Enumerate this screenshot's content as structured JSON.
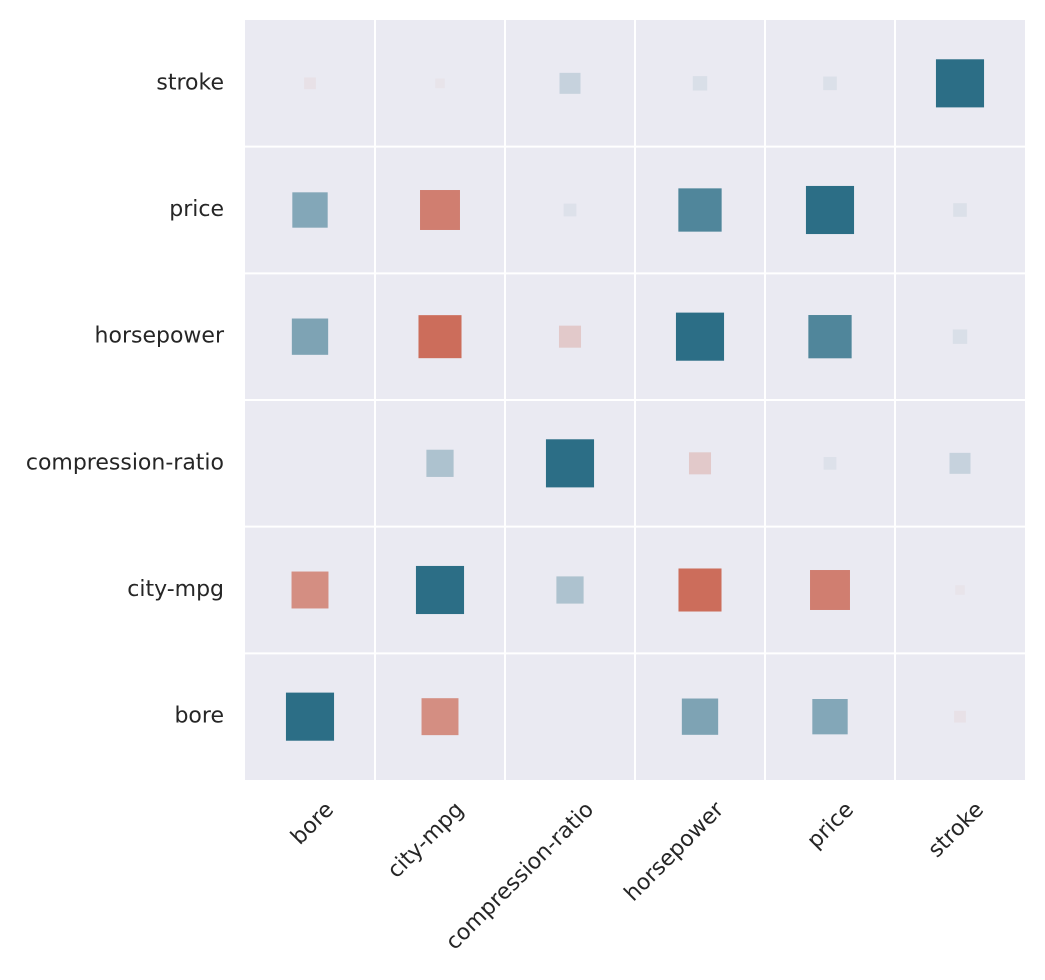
{
  "chart_data": {
    "type": "heatmap",
    "title": "",
    "xlabel": "",
    "ylabel": "",
    "x_categories": [
      "bore",
      "city-mpg",
      "compression-ratio",
      "horsepower",
      "price",
      "stroke"
    ],
    "y_categories": [
      "bore",
      "city-mpg",
      "compression-ratio",
      "horsepower",
      "price",
      "stroke"
    ],
    "y_order_top_to_bottom": [
      "stroke",
      "price",
      "horsepower",
      "compression-ratio",
      "city-mpg",
      "bore"
    ],
    "value_range": [
      -1,
      1
    ],
    "marker": "square sized and colored by correlation",
    "grid": true,
    "colors": {
      "background": "#eaeaf2",
      "grid": "#ffffff",
      "negative": "#c44e35",
      "neutral": "#eaeaf2",
      "positive": "#2c6e86",
      "text": "#262626"
    },
    "values": [
      [
        1.0,
        -0.59,
        0.0,
        0.57,
        0.54,
        -0.06
      ],
      [
        -0.59,
        1.0,
        0.32,
        -0.8,
        -0.69,
        -0.04
      ],
      [
        0.0,
        0.32,
        1.0,
        -0.21,
        0.07,
        0.19
      ],
      [
        0.57,
        -0.8,
        -0.21,
        1.0,
        0.81,
        0.09
      ],
      [
        0.54,
        -0.69,
        0.07,
        0.81,
        1.0,
        0.08
      ],
      [
        -0.06,
        -0.04,
        0.19,
        0.09,
        0.08,
        1.0
      ]
    ]
  }
}
